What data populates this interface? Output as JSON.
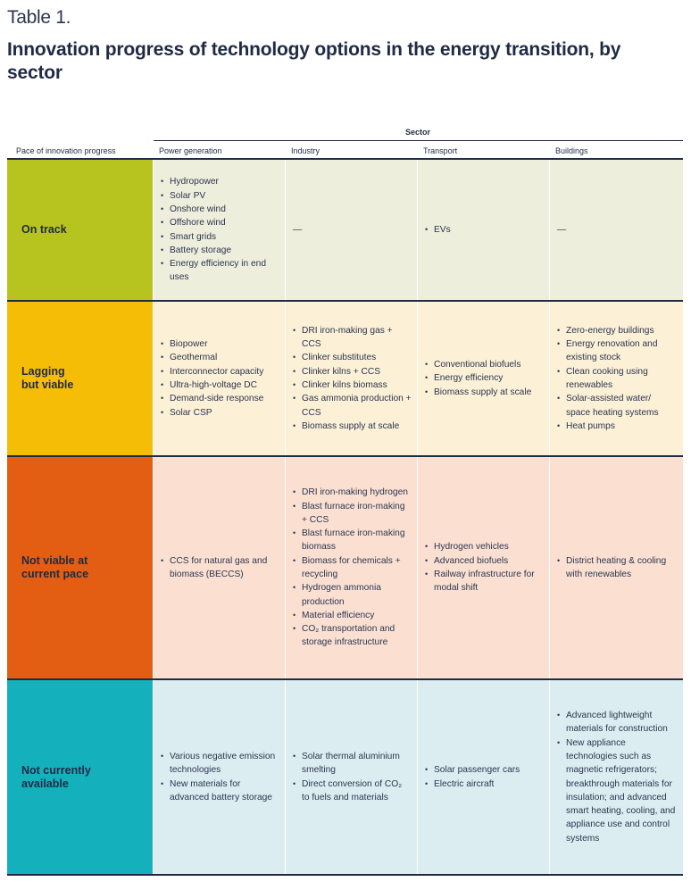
{
  "table_label": "Table 1.",
  "title": "Innovation progress of technology options in the energy transition, by sector",
  "sector_label": "Sector",
  "headers": {
    "pace": "Pace of innovation progress",
    "power": "Power generation",
    "industry": "Industry",
    "transport": "Transport",
    "buildings": "Buildings"
  },
  "rows": [
    {
      "pace": "On track",
      "power": [
        "Hydropower",
        "Solar PV",
        "Onshore wind",
        "Offshore wind",
        "Smart grids",
        "Battery storage",
        "Energy efficiency in end uses"
      ],
      "industry": "—",
      "transport": [
        "EVs"
      ],
      "buildings": "—"
    },
    {
      "pace": "Lagging but viable",
      "power": [
        "Biopower",
        "Geothermal",
        "Interconnector capacity",
        "Ultra-high-voltage DC",
        "Demand-side response",
        "Solar CSP"
      ],
      "industry": [
        "DRI iron-making gas + CCS",
        "Clinker substitutes",
        "Clinker kilns + CCS",
        "Clinker kilns biomass",
        "Gas ammonia production + CCS",
        "Biomass supply at scale"
      ],
      "transport": [
        "Conventional biofuels",
        "Energy efficiency",
        "Biomass supply at scale"
      ],
      "buildings": [
        "Zero-energy buildings",
        "Energy renovation and existing stock",
        "Clean cooking using renewables",
        "Solar-assisted water/ space heating systems",
        "Heat pumps"
      ]
    },
    {
      "pace": "Not viable at current pace",
      "power": [
        "CCS for natural gas and biomass (BECCS)"
      ],
      "industry": [
        "DRI iron-making hydrogen",
        "Blast furnace iron-making + CCS",
        "Blast furnace iron-making biomass",
        "Biomass for chemicals + recycling",
        "Hydrogen ammonia production",
        "Material efficiency",
        "CO₂ transportation and storage infrastructure"
      ],
      "transport": [
        "Hydrogen vehicles",
        "Advanced biofuels",
        "Railway infrastructure for modal shift"
      ],
      "buildings": [
        "District heating & cooling with renewables"
      ]
    },
    {
      "pace": "Not currently available",
      "power": [
        "Various negative emission technologies",
        "New materials for advanced battery storage"
      ],
      "industry": [
        "Solar thermal aluminium smelting",
        "Direct conversion of CO₂ to fuels and materials"
      ],
      "transport": [
        "Solar passenger cars",
        "Electric aircraft"
      ],
      "buildings": [
        "Advanced lightweight materials for construction",
        "New appliance technologies such as magnetic refrigerators; breakthrough materials for insulation; and advanced smart heating, cooling, and appliance use and control systems"
      ]
    }
  ],
  "colors": {
    "on_track": "#b7c31f",
    "on_track_bg": "#eeeedc",
    "lagging": "#f5bd06",
    "lagging_bg": "#fcf0d6",
    "not_viable": "#e35d12",
    "not_viable_bg": "#fbe0d2",
    "not_available": "#14b1bd",
    "not_available_bg": "#dcedf1",
    "rule": "#1f2a44"
  }
}
